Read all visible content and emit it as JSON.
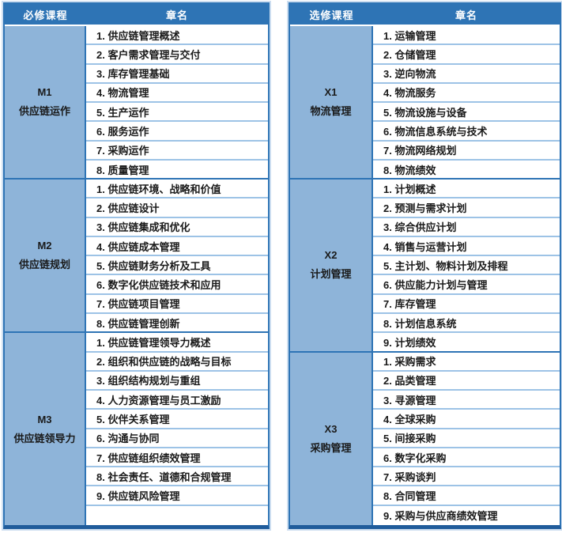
{
  "page": {
    "background": "#FFFFFF"
  },
  "colors": {
    "header_bg": "#2E74B5",
    "header_text": "#FFFFFF",
    "section_bg": "#8EB4D9",
    "border_main": "#2E74B5",
    "border_light": "#9DC3E6",
    "border_bottom_dark": "#205C9B",
    "outer_glow": "#CDDEF0",
    "body_text": "#1A1A1A"
  },
  "tables": [
    {
      "id": "required-courses",
      "header": {
        "course_col": "必修课程",
        "chapter_col": "章名"
      },
      "sections": [
        {
          "code": "M1",
          "name": "供应链运作",
          "chapters": [
            "1. 供应链管理概述",
            "2. 客户需求管理与交付",
            "3. 库存管理基础",
            "4. 物流管理",
            "5. 生产运作",
            "6. 服务运作",
            "7. 采购运作",
            "8. 质量管理"
          ]
        },
        {
          "code": "M2",
          "name": "供应链规划",
          "chapters": [
            "1. 供应链环境、战略和价值",
            "2. 供应链设计",
            "3. 供应链集成和优化",
            "4. 供应链成本管理",
            "5. 供应链财务分析及工具",
            "6. 数字化供应链技术和应用",
            "7. 供应链项目管理",
            "8. 供应链管理创新"
          ]
        },
        {
          "code": "M3",
          "name": "供应链领导力",
          "chapters": [
            "1. 供应链管理领导力概述",
            "2. 组织和供应链的战略与目标",
            "3. 组织结构规划与重组",
            "4. 人力资源管理与员工激励",
            "5. 伙伴关系管理",
            "6. 沟通与协同",
            "7. 供应链组织绩效管理",
            "8. 社会责任、道德和合规管理",
            "9. 供应链风险管理",
            ""
          ]
        }
      ]
    },
    {
      "id": "elective-courses",
      "header": {
        "course_col": "选修课程",
        "chapter_col": "章名"
      },
      "sections": [
        {
          "code": "X1",
          "name": "物流管理",
          "chapters": [
            "1. 运输管理",
            "2. 仓储管理",
            "3. 逆向物流",
            "4. 物流服务",
            "5. 物流设施与设备",
            "6. 物流信息系统与技术",
            "7. 物流网络规划",
            "8. 物流绩效"
          ]
        },
        {
          "code": "X2",
          "name": "计划管理",
          "chapters": [
            "1. 计划概述",
            "2. 预测与需求计划",
            "3. 综合供应计划",
            "4. 销售与运营计划",
            "5. 主计划、物料计划及排程",
            "6. 供应能力计划与管理",
            "7. 库存管理",
            "8. 计划信息系统",
            "9. 计划绩效"
          ]
        },
        {
          "code": "X3",
          "name": "采购管理",
          "chapters": [
            "1. 采购需求",
            "2. 品类管理",
            "3. 寻源管理",
            "4. 全球采购",
            "5. 间接采购",
            "6. 数字化采购",
            "7. 采购谈判",
            "8. 合同管理",
            "9. 采购与供应商绩效管理"
          ]
        }
      ]
    }
  ]
}
